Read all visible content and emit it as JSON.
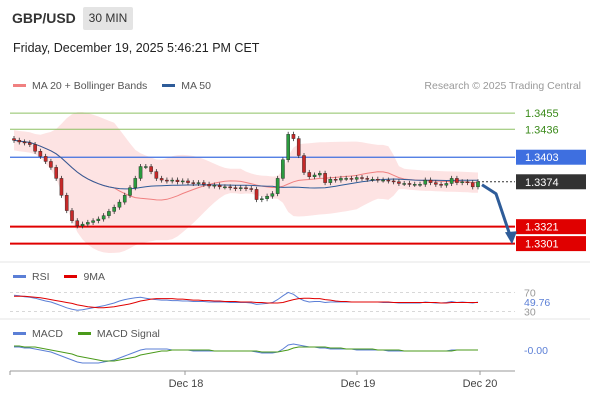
{
  "header": {
    "symbol": "GBP/USD",
    "timeframe": "30 MIN",
    "datetime": "Friday, December 19, 2025 5:46:21 PM CET"
  },
  "main_panel": {
    "legend": [
      {
        "label": "MA 20 + Bollinger Bands",
        "color": "#f08080"
      },
      {
        "label": "MA 50",
        "color": "#2e5c99"
      }
    ],
    "credit": "Research © 2025 Trading Central"
  },
  "rsi_panel": {
    "legend": [
      {
        "label": "RSI",
        "color": "#5b7fd6"
      },
      {
        "label": "9MA",
        "color": "#e00000"
      }
    ]
  },
  "macd_panel": {
    "legend": [
      {
        "label": "MACD",
        "color": "#5b7fd6"
      },
      {
        "label": "MACD Signal",
        "color": "#4a9a1a"
      }
    ]
  },
  "chart_data": [
    {
      "type": "candlestick",
      "title": "GBP/USD",
      "ylim": [
        1.3284,
        1.348
      ],
      "price_levels": [
        {
          "value": 1.3455,
          "label": "1.3455",
          "kind": "resistance",
          "color": "#8dc063",
          "label_bg": "#ffffff",
          "label_color": "#3a8a1a"
        },
        {
          "value": 1.3436,
          "label": "1.3436",
          "kind": "resistance",
          "color": "#8dc063",
          "label_bg": "#ffffff",
          "label_color": "#3a8a1a"
        },
        {
          "value": 1.3403,
          "label": "1.3403",
          "kind": "pivot",
          "color": "#3e6fe0",
          "label_bg": "#3e6fe0",
          "label_color": "#ffffff"
        },
        {
          "value": 1.3374,
          "label": "1.3374",
          "kind": "last",
          "color": "#333333",
          "label_bg": "#333333",
          "label_color": "#ffffff"
        },
        {
          "value": 1.3321,
          "label": "1.3321",
          "kind": "support",
          "color": "#e00000",
          "label_bg": "#e00000",
          "label_color": "#ffffff"
        },
        {
          "value": 1.3301,
          "label": "1.3301",
          "kind": "support",
          "color": "#e00000",
          "label_bg": "#e00000",
          "label_color": "#ffffff"
        }
      ],
      "x_tick_labels": [
        "Dec 18",
        "Dec 19",
        "Dec 20"
      ],
      "closes": [
        1.3423,
        1.3421,
        1.342,
        1.3418,
        1.341,
        1.3404,
        1.3398,
        1.3391,
        1.3378,
        1.3358,
        1.334,
        1.3328,
        1.3322,
        1.3324,
        1.3326,
        1.3328,
        1.333,
        1.3334,
        1.3339,
        1.3344,
        1.335,
        1.3358,
        1.3367,
        1.3378,
        1.3392,
        1.3392,
        1.3386,
        1.3378,
        1.3376,
        1.3375,
        1.3376,
        1.3374,
        1.3375,
        1.3373,
        1.3372,
        1.3373,
        1.3371,
        1.3369,
        1.337,
        1.3368,
        1.3368,
        1.3367,
        1.3366,
        1.3367,
        1.3366,
        1.3365,
        1.3353,
        1.3354,
        1.3357,
        1.336,
        1.3378,
        1.34,
        1.343,
        1.3425,
        1.3405,
        1.3385,
        1.338,
        1.3382,
        1.3384,
        1.3373,
        1.3377,
        1.3376,
        1.3378,
        1.3378,
        1.3377,
        1.3379,
        1.3378,
        1.3377,
        1.3377,
        1.3376,
        1.3376,
        1.3375,
        1.3374,
        1.3372,
        1.3372,
        1.3371,
        1.3371,
        1.3371,
        1.3376,
        1.3373,
        1.3371,
        1.337,
        1.3372,
        1.3378,
        1.3373,
        1.3374,
        1.3373,
        1.3368,
        1.3374
      ],
      "forecast_arrow": {
        "from": 1.3374,
        "to": 1.3305
      }
    },
    {
      "type": "line",
      "title": "RSI",
      "ylim": [
        25,
        75
      ],
      "levels": [
        70,
        30
      ],
      "current_value": "49.76",
      "series": [
        {
          "name": "RSI",
          "values": [
            64,
            63,
            61,
            60,
            58,
            55,
            52,
            50,
            46,
            42,
            38,
            35,
            33,
            34,
            36,
            38,
            40,
            42,
            45,
            48,
            52,
            55,
            57,
            59,
            60,
            58,
            56,
            55,
            54,
            54,
            53,
            53,
            52,
            52,
            51,
            51,
            51,
            50,
            50,
            50,
            50,
            49,
            49,
            49,
            49,
            48,
            45,
            46,
            47,
            49,
            55,
            63,
            70,
            66,
            58,
            53,
            50,
            51,
            51,
            49,
            50,
            50,
            50,
            50,
            50,
            50,
            50,
            50,
            50,
            50,
            49,
            49,
            49,
            48,
            48,
            48,
            48,
            48,
            50,
            49,
            48,
            48,
            49,
            51,
            49,
            50,
            49,
            48,
            49.76
          ]
        },
        {
          "name": "9MA",
          "values": [
            62,
            62,
            62,
            61,
            60,
            59,
            57,
            55,
            53,
            51,
            49,
            47,
            44,
            42,
            40,
            39,
            38,
            38,
            39,
            40,
            42,
            44,
            46,
            49,
            52,
            54,
            56,
            57,
            57,
            57,
            57,
            56,
            56,
            55,
            54,
            54,
            53,
            53,
            52,
            52,
            51,
            51,
            51,
            50,
            50,
            50,
            49,
            49,
            48,
            48,
            48,
            49,
            52,
            55,
            57,
            58,
            58,
            57,
            57,
            55,
            54,
            52,
            51,
            51,
            50,
            50,
            50,
            50,
            50,
            50,
            50,
            50,
            49,
            49,
            49,
            49,
            49,
            49,
            49,
            49,
            49,
            48,
            48,
            49,
            49,
            49,
            49,
            49,
            49
          ]
        }
      ]
    },
    {
      "type": "line",
      "title": "MACD",
      "ylim": [
        -0.0018,
        0.001
      ],
      "current_value": "-0.00",
      "series": [
        {
          "name": "MACD",
          "values": [
            0.0003,
            0.0003,
            0.0002,
            0.0002,
            0.0001,
            0.0,
            -0.0001,
            -0.0002,
            -0.0004,
            -0.0006,
            -0.0008,
            -0.001,
            -0.0012,
            -0.0013,
            -0.0013,
            -0.0013,
            -0.0013,
            -0.0012,
            -0.0011,
            -0.001,
            -0.0008,
            -0.0006,
            -0.0004,
            -0.0002,
            0.0,
            0.0001,
            0.0001,
            0.0001,
            0.0001,
            0.0001,
            0.0,
            0.0,
            0.0,
            0.0,
            -0.0001,
            -0.0001,
            -0.0001,
            -0.0001,
            -0.0001,
            -0.0001,
            -0.0001,
            -0.0001,
            -0.0001,
            -0.0001,
            -0.0001,
            -0.0001,
            -0.0002,
            -0.0003,
            -0.0003,
            -0.0003,
            -0.0002,
            0.0001,
            0.0005,
            0.0006,
            0.0005,
            0.0004,
            0.0003,
            0.0003,
            0.0002,
            0.0002,
            0.0001,
            0.0001,
            0.0001,
            0.0001,
            0.0001,
            0.0,
            0.0,
            0.0,
            0.0,
            0.0,
            0.0,
            -0.0001,
            -0.0001,
            -0.0001,
            -0.0001,
            -0.0001,
            -0.0001,
            -0.0001,
            -0.0001,
            -0.0001,
            -0.0001,
            -0.0001,
            -0.0001,
            0.0,
            0.0,
            0.0,
            0.0,
            0.0,
            0.0
          ]
        },
        {
          "name": "MACD Signal",
          "values": [
            0.0004,
            0.0004,
            0.0003,
            0.0003,
            0.0003,
            0.0002,
            0.0001,
            0.0,
            -0.0001,
            -0.0002,
            -0.0003,
            -0.0004,
            -0.0006,
            -0.0007,
            -0.0008,
            -0.0009,
            -0.001,
            -0.0011,
            -0.0011,
            -0.0011,
            -0.001,
            -0.0009,
            -0.0008,
            -0.0007,
            -0.0005,
            -0.0004,
            -0.0003,
            -0.0002,
            -0.0001,
            -0.0001,
            0.0,
            0.0,
            0.0,
            0.0,
            0.0,
            0.0,
            0.0,
            0.0,
            -0.0001,
            -0.0001,
            -0.0001,
            -0.0001,
            -0.0001,
            -0.0001,
            -0.0001,
            -0.0001,
            -0.0001,
            -0.0002,
            -0.0002,
            -0.0002,
            -0.0002,
            -0.0001,
            0.0,
            0.0002,
            0.0003,
            0.0003,
            0.0003,
            0.0003,
            0.0003,
            0.0003,
            0.0002,
            0.0002,
            0.0002,
            0.0001,
            0.0001,
            0.0001,
            0.0001,
            0.0001,
            0.0001,
            0.0,
            0.0,
            0.0,
            0.0,
            0.0,
            -0.0001,
            -0.0001,
            -0.0001,
            -0.0001,
            -0.0001,
            -0.0001,
            -0.0001,
            -0.0001,
            -0.0001,
            -0.0001,
            0.0,
            0.0,
            0.0,
            0.0,
            0.0
          ]
        }
      ]
    }
  ]
}
